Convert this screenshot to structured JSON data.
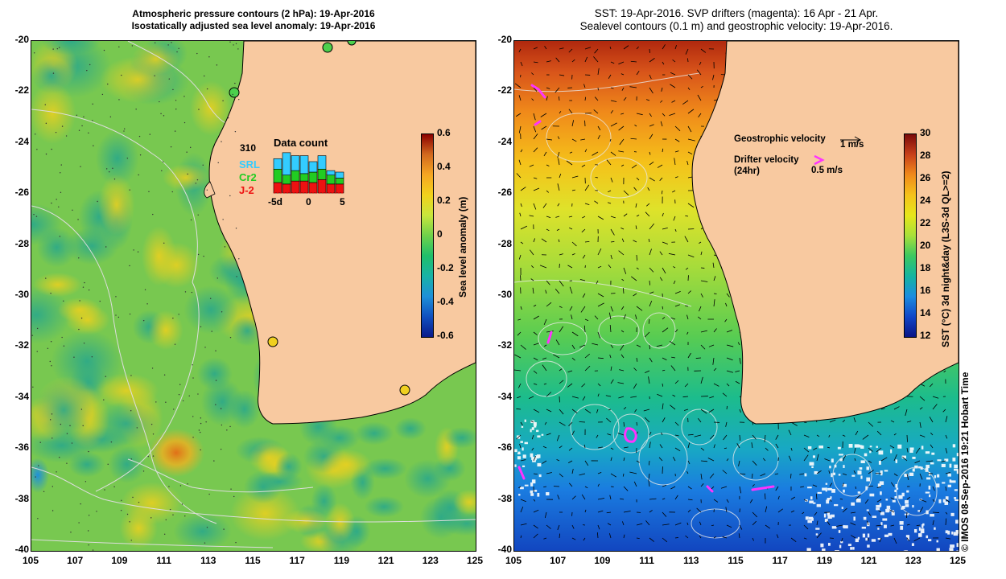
{
  "left_title": {
    "line1": "Atmospheric pressure contours (2 hPa): 19-Apr-2016",
    "line2": "Isostatically adjusted sea level anomaly: 19-Apr-2016"
  },
  "right_title": {
    "line1": "SST: 19-Apr-2016. SVP drifters (magenta): 16 Apr - 21 Apr.",
    "line2": "Sealevel contours (0.1 m) and geostrophic velocity: 19-Apr-2016."
  },
  "axes": {
    "lat_ticks": [
      "-20",
      "-22",
      "-24",
      "-26",
      "-28",
      "-30",
      "-32",
      "-34",
      "-36",
      "-38",
      "-40"
    ],
    "lon_ticks": [
      "105",
      "107",
      "109",
      "111",
      "113",
      "115",
      "117",
      "119",
      "121",
      "123",
      "125"
    ]
  },
  "left_colorbar": {
    "label": "Sea level anomaly (m)",
    "ticks": [
      "0.6",
      "0.4",
      "0.2",
      "0",
      "-0.2",
      "-0.4",
      "-0.6"
    ],
    "colors": [
      "#8b0000",
      "#d2691e",
      "#f5a623",
      "#f2d21b",
      "#c8e63c",
      "#6fd14a",
      "#1fbf6a",
      "#18b3a6",
      "#1e90d8",
      "#1050c0",
      "#0a1a8a"
    ]
  },
  "right_colorbar": {
    "label": "SST (°C) 3d night&day (L3S-3d QL>=2)",
    "ticks": [
      "30",
      "28",
      "26",
      "24",
      "22",
      "20",
      "18",
      "16",
      "14",
      "12"
    ],
    "colors": [
      "#7a0a0a",
      "#c8401a",
      "#f08a1a",
      "#f5c21a",
      "#e6e61a",
      "#a8e03a",
      "#3cc860",
      "#14b4a0",
      "#1a8ce0",
      "#1046c8",
      "#0a1486"
    ]
  },
  "data_count": {
    "title": "Data count",
    "max_label": "310",
    "series": [
      "SRL",
      "Cr2",
      "J-2"
    ],
    "series_colors": [
      "#33ccff",
      "#22cc22",
      "#ee1111"
    ],
    "x_labels": [
      "-5d",
      "0",
      "5"
    ],
    "bars": [
      {
        "j2": 0.35,
        "cr2": 0.45,
        "srl": 0.35
      },
      {
        "j2": 0.3,
        "cr2": 0.3,
        "srl": 0.75
      },
      {
        "j2": 0.4,
        "cr2": 0.35,
        "srl": 0.5
      },
      {
        "j2": 0.4,
        "cr2": 0.25,
        "srl": 0.6
      },
      {
        "j2": 0.35,
        "cr2": 0.35,
        "srl": 0.35
      },
      {
        "j2": 0.45,
        "cr2": 0.35,
        "srl": 0.45
      },
      {
        "j2": 0.3,
        "cr2": 0.3,
        "srl": 0.15
      },
      {
        "j2": 0.3,
        "cr2": 0.2,
        "srl": 0.2
      }
    ]
  },
  "right_legend": {
    "geo_label": "Geostrophic velocity",
    "geo_scale": "1 m/s",
    "drifter_label": "Drifter velocity",
    "drifter_sub": "(24hr)",
    "drifter_scale": "0.5 m/s"
  },
  "credit": "© IMOS 08-Sep-2016 19:21 Hobart Time",
  "colors": {
    "land": "#f8c9a0",
    "drifter": "#ff33ff"
  }
}
